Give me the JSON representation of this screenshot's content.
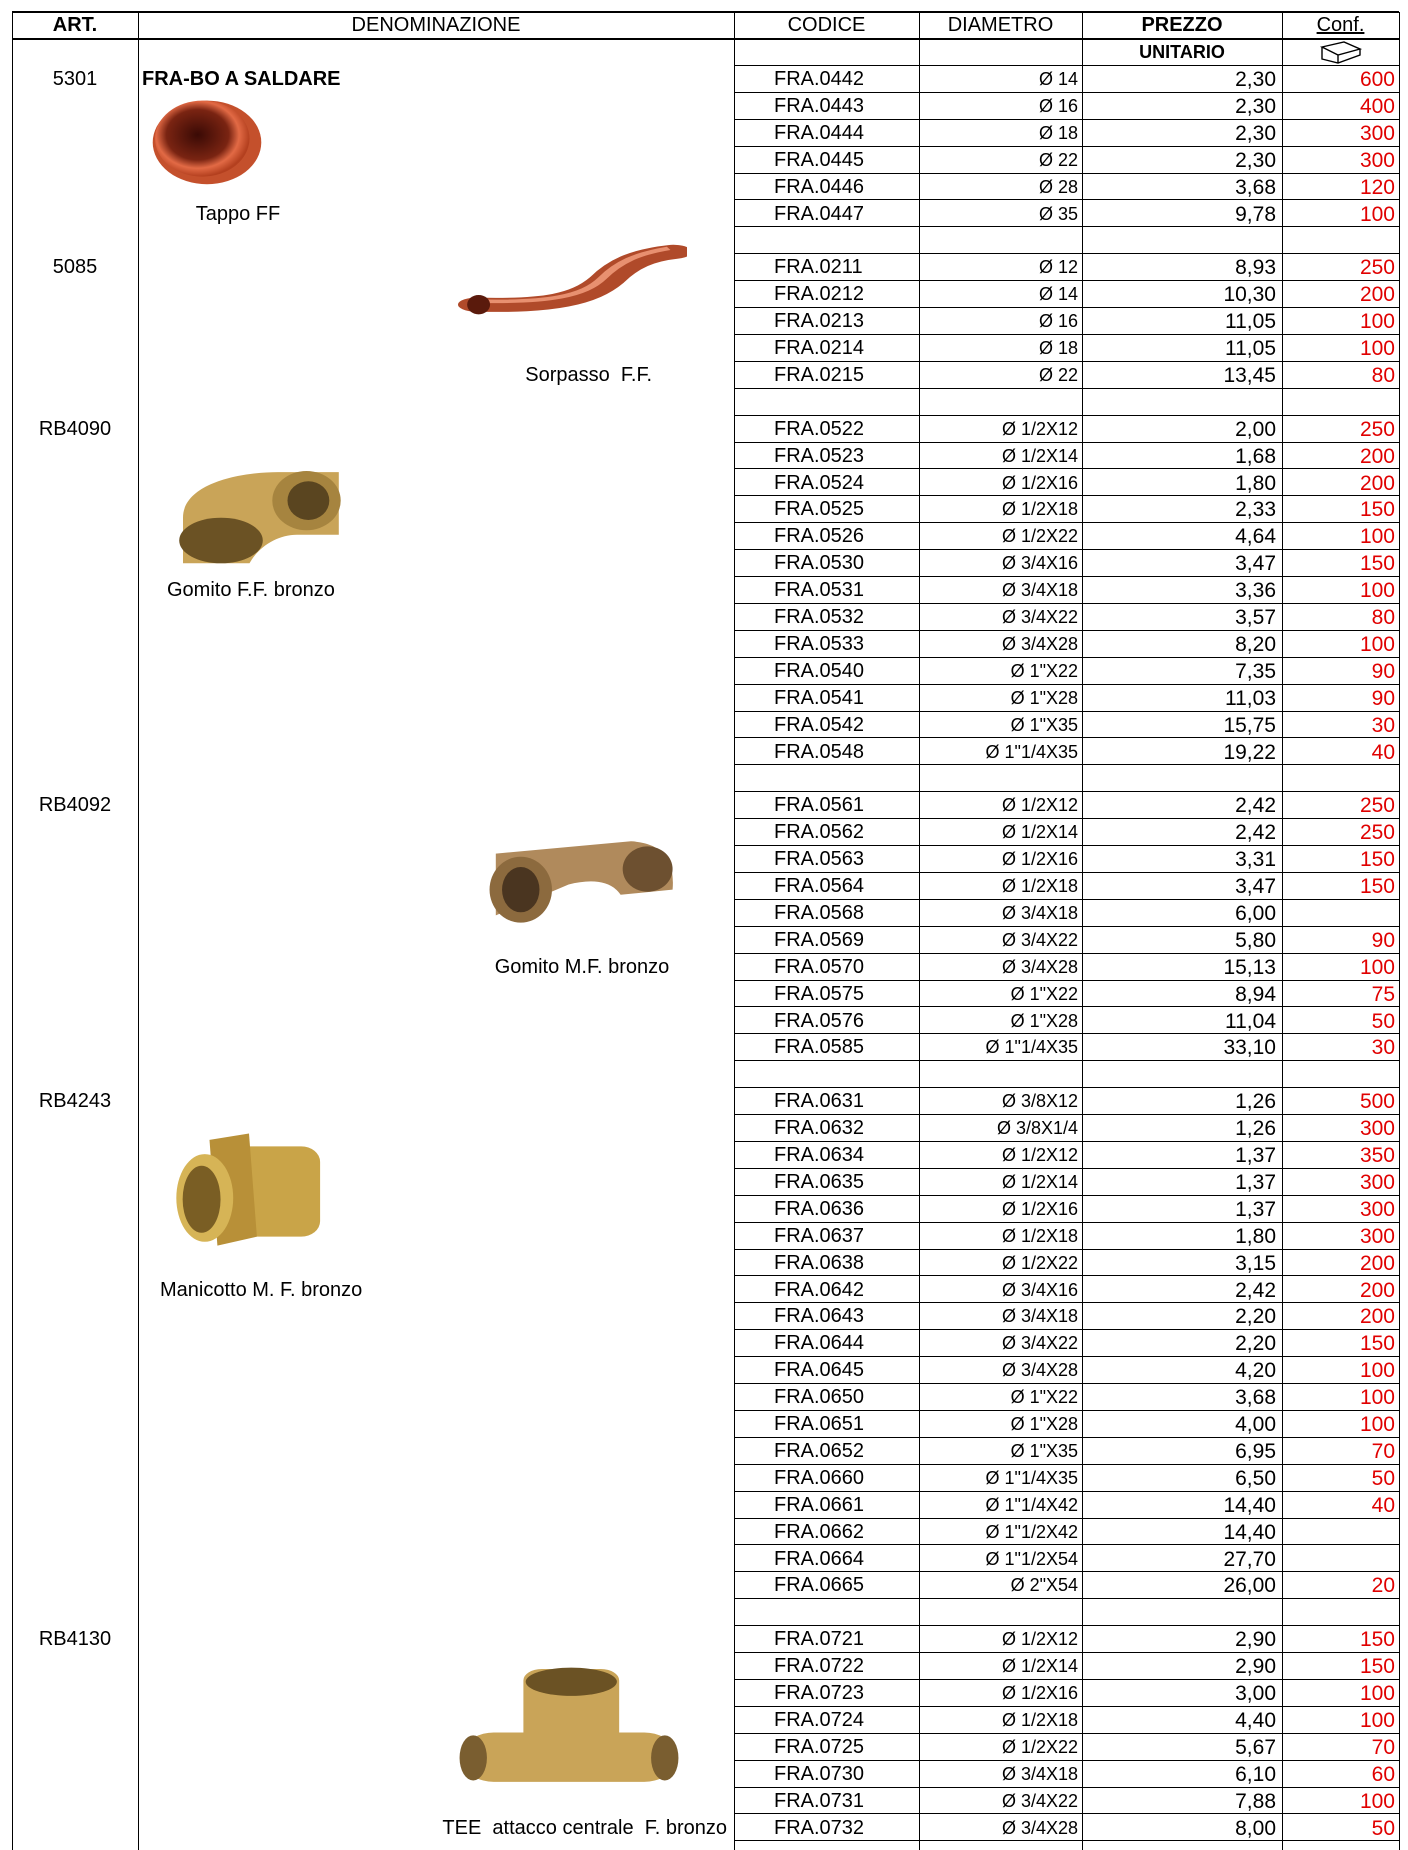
{
  "header": {
    "art": "ART.",
    "denominazione": "DENOMINAZIONE",
    "codice": "CODICE",
    "diametro": "DIAMETRO",
    "prezzo": "PREZZO",
    "unitario": "UNITARIO",
    "conf": "Conf."
  },
  "groups": [
    {
      "art": "5301",
      "name": "FRA-BO A SALDARE",
      "caption": "Tappo FF",
      "rows": [
        [
          "FRA.0442",
          "Ø 14",
          "2,30",
          600
        ],
        [
          "FRA.0443",
          "Ø 16",
          "2,30",
          400
        ],
        [
          "FRA.0444",
          "Ø 18",
          "2,30",
          300
        ],
        [
          "FRA.0445",
          "Ø 22",
          "2,30",
          300
        ],
        [
          "FRA.0446",
          "Ø 28",
          "3,68",
          120
        ],
        [
          "FRA.0447",
          "Ø 35",
          "9,78",
          100
        ]
      ]
    },
    {
      "art": "5085",
      "caption": "Sorpasso  F.F.",
      "rows": [
        [
          "FRA.0211",
          "Ø 12",
          "8,93",
          250
        ],
        [
          "FRA.0212",
          "Ø 14",
          "10,30",
          200
        ],
        [
          "FRA.0213",
          "Ø 16",
          "11,05",
          100
        ],
        [
          "FRA.0214",
          "Ø 18",
          "11,05",
          100
        ],
        [
          "FRA.0215",
          "Ø 22",
          "13,45",
          80
        ]
      ]
    },
    {
      "art": "RB4090",
      "caption": "Gomito F.F. bronzo",
      "rows": [
        [
          "FRA.0522",
          "Ø 1/2X12",
          "2,00",
          250
        ],
        [
          "FRA.0523",
          "Ø 1/2X14",
          "1,68",
          200
        ],
        [
          "FRA.0524",
          "Ø 1/2X16",
          "1,80",
          200
        ],
        [
          "FRA.0525",
          "Ø 1/2X18",
          "2,33",
          150
        ],
        [
          "FRA.0526",
          "Ø 1/2X22",
          "4,64",
          100
        ],
        [
          "FRA.0530",
          "Ø 3/4X16",
          "3,47",
          150
        ],
        [
          "FRA.0531",
          "Ø 3/4X18",
          "3,36",
          100
        ],
        [
          "FRA.0532",
          "Ø 3/4X22",
          "3,57",
          80
        ],
        [
          "FRA.0533",
          "Ø 3/4X28",
          "8,20",
          100
        ],
        [
          "FRA.0540",
          "Ø 1\"X22",
          "7,35",
          90
        ],
        [
          "FRA.0541",
          "Ø 1\"X28",
          "11,03",
          90
        ],
        [
          "FRA.0542",
          "Ø 1\"X35",
          "15,75",
          30
        ],
        [
          "FRA.0548",
          "Ø 1\"1/4X35",
          "19,22",
          40
        ]
      ]
    },
    {
      "art": "RB4092",
      "caption": "Gomito M.F. bronzo",
      "rows": [
        [
          "FRA.0561",
          "Ø 1/2X12",
          "2,42",
          250
        ],
        [
          "FRA.0562",
          "Ø 1/2X14",
          "2,42",
          250
        ],
        [
          "FRA.0563",
          "Ø 1/2X16",
          "3,31",
          150
        ],
        [
          "FRA.0564",
          "Ø 1/2X18",
          "3,47",
          150
        ],
        [
          "FRA.0568",
          "Ø 3/4X18",
          "6,00",
          null
        ],
        [
          "FRA.0569",
          "Ø 3/4X22",
          "5,80",
          90
        ],
        [
          "FRA.0570",
          "Ø 3/4X28",
          "15,13",
          100
        ],
        [
          "FRA.0575",
          "Ø 1\"X22",
          "8,94",
          75
        ],
        [
          "FRA.0576",
          "Ø 1\"X28",
          "11,04",
          50
        ],
        [
          "FRA.0585",
          "Ø 1\"1/4X35",
          "33,10",
          30
        ]
      ]
    },
    {
      "art": "RB4243",
      "caption": "Manicotto M. F. bronzo",
      "rows": [
        [
          "FRA.0631",
          "Ø 3/8X12",
          "1,26",
          500
        ],
        [
          "FRA.0632",
          "Ø 3/8X1/4",
          "1,26",
          300
        ],
        [
          "FRA.0634",
          "Ø 1/2X12",
          "1,37",
          350
        ],
        [
          "FRA.0635",
          "Ø 1/2X14",
          "1,37",
          300
        ],
        [
          "FRA.0636",
          "Ø 1/2X16",
          "1,37",
          300
        ],
        [
          "FRA.0637",
          "Ø 1/2X18",
          "1,80",
          300
        ],
        [
          "FRA.0638",
          "Ø 1/2X22",
          "3,15",
          200
        ],
        [
          "FRA.0642",
          "Ø 3/4X16",
          "2,42",
          200
        ],
        [
          "FRA.0643",
          "Ø 3/4X18",
          "2,20",
          200
        ],
        [
          "FRA.0644",
          "Ø 3/4X22",
          "2,20",
          150
        ],
        [
          "FRA.0645",
          "Ø 3/4X28",
          "4,20",
          100
        ],
        [
          "FRA.0650",
          "Ø 1\"X22",
          "3,68",
          100
        ],
        [
          "FRA.0651",
          "Ø 1\"X28",
          "4,00",
          100
        ],
        [
          "FRA.0652",
          "Ø 1\"X35",
          "6,95",
          70
        ],
        [
          "FRA.0660",
          "Ø 1\"1/4X35",
          "6,50",
          50
        ],
        [
          "FRA.0661",
          "Ø 1\"1/4X42",
          "14,40",
          40
        ],
        [
          "FRA.0662",
          "Ø 1\"1/2X42",
          "14,40",
          null
        ],
        [
          "FRA.0664",
          "Ø 1\"1/2X54",
          "27,70",
          null
        ],
        [
          "FRA.0665",
          "Ø 2\"X54",
          "26,00",
          20
        ]
      ]
    },
    {
      "art": "RB4130",
      "caption": "TEE  attacco centrale  F. bronzo",
      "rows": [
        [
          "FRA.0721",
          "Ø 1/2X12",
          "2,90",
          150
        ],
        [
          "FRA.0722",
          "Ø 1/2X14",
          "2,90",
          150
        ],
        [
          "FRA.0723",
          "Ø 1/2X16",
          "3,00",
          100
        ],
        [
          "FRA.0724",
          "Ø 1/2X18",
          "4,40",
          100
        ],
        [
          "FRA.0725",
          "Ø 1/2X22",
          "5,67",
          70
        ],
        [
          "FRA.0730",
          "Ø 3/4X18",
          "6,10",
          60
        ],
        [
          "FRA.0731",
          "Ø 3/4X22",
          "7,88",
          100
        ],
        [
          "FRA.0732",
          "Ø 3/4X28",
          "8,00",
          50
        ]
      ]
    }
  ]
}
